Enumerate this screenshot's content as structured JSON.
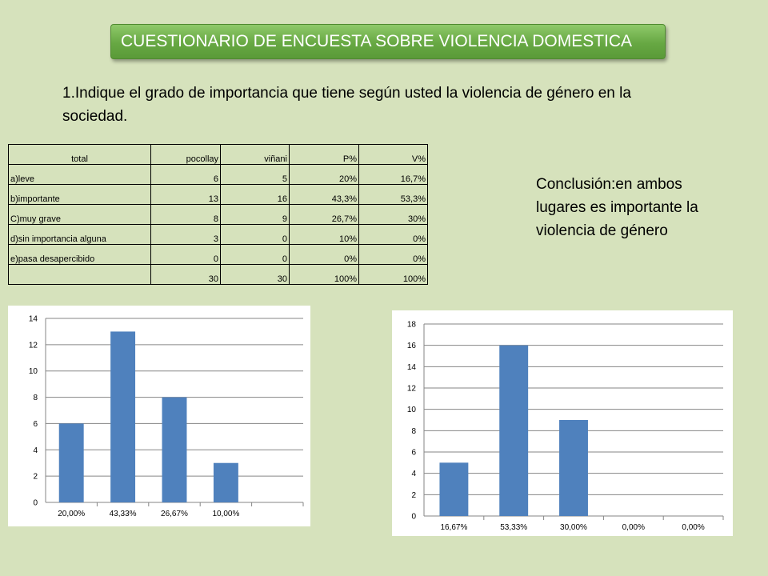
{
  "title": "CUESTIONARIO DE ENCUESTA SOBRE VIOLENCIA DOMESTICA",
  "question": "1.Indique el grado de importancia que tiene según usted la violencia de género en la sociedad.",
  "conclusion": "Conclusión:en ambos lugares es importante la violencia de género",
  "table": {
    "headers": [
      "total",
      "pocollay",
      "viñani",
      "P%",
      "V%"
    ],
    "rows": [
      [
        "a)leve",
        "6",
        "5",
        "20%",
        "16,7%"
      ],
      [
        "b)importante",
        "13",
        "16",
        "43,3%",
        "53,3%"
      ],
      [
        "C)muy grave",
        "8",
        "9",
        "26,7%",
        "30%"
      ],
      [
        "d)sin importancia alguna",
        "3",
        "0",
        "10%",
        "0%"
      ],
      [
        "e)pasa desapercibido",
        "0",
        "0",
        "0%",
        "0%"
      ],
      [
        "",
        "30",
        "30",
        "100%",
        "100%"
      ]
    ]
  },
  "chart_data": [
    {
      "type": "bar",
      "categories": [
        "20,00%",
        "43,33%",
        "26,67%",
        "10,00%",
        ""
      ],
      "values": [
        6,
        13,
        8,
        3,
        null
      ],
      "ylim": [
        0,
        14
      ],
      "yticks": [
        0,
        2,
        4,
        6,
        8,
        10,
        12,
        14
      ],
      "grid": true,
      "bar_color": "#4f81bd"
    },
    {
      "type": "bar",
      "categories": [
        "16,67%",
        "53,33%",
        "30,00%",
        "0,00%",
        "0,00%"
      ],
      "values": [
        5,
        16,
        9,
        0,
        0
      ],
      "ylim": [
        0,
        18
      ],
      "yticks": [
        0,
        2,
        4,
        6,
        8,
        10,
        12,
        14,
        16,
        18
      ],
      "grid": true,
      "bar_color": "#4f81bd"
    }
  ]
}
